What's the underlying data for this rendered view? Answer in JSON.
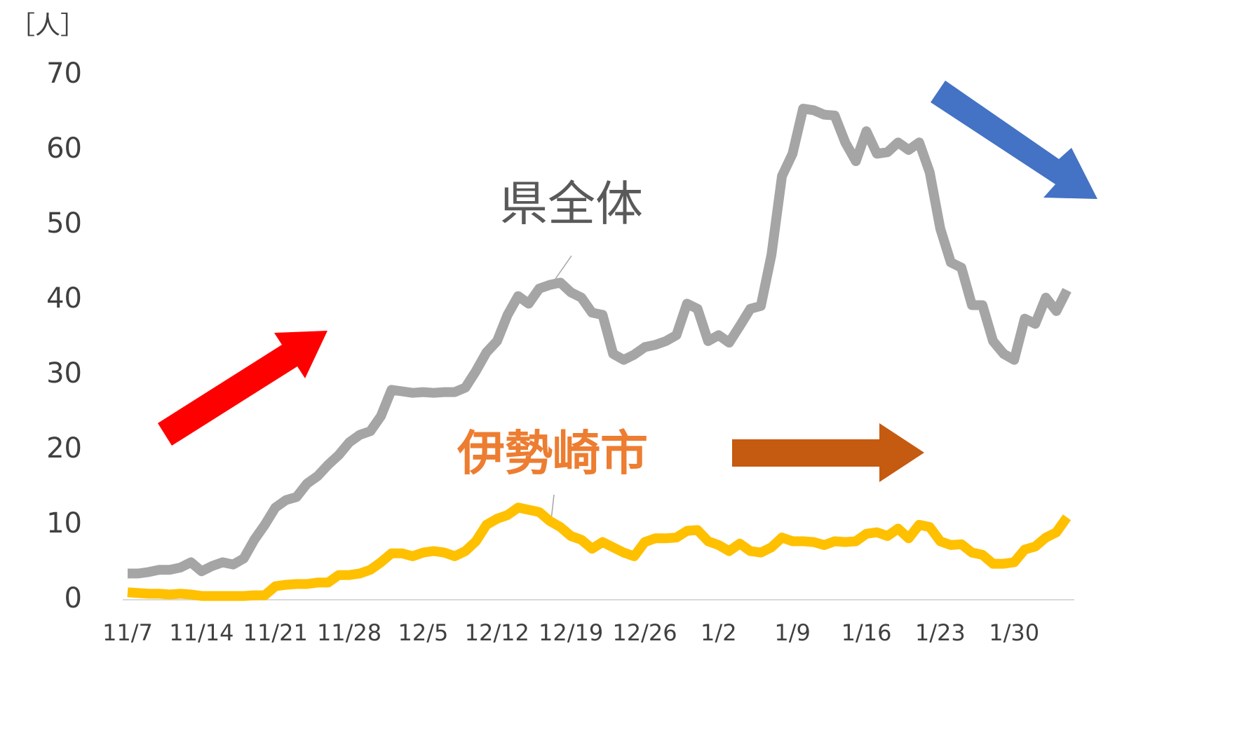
{
  "chart_data": {
    "type": "line",
    "y_axis_label": "［人］",
    "annotations": [
      "県全体",
      "伊勢崎市"
    ],
    "categories": [
      "11/7",
      null,
      null,
      null,
      null,
      null,
      null,
      "11/14",
      null,
      null,
      null,
      null,
      null,
      null,
      "11/21",
      null,
      null,
      null,
      null,
      null,
      null,
      "11/28",
      null,
      null,
      null,
      null,
      null,
      null,
      "12/5",
      null,
      null,
      null,
      null,
      null,
      null,
      "12/12",
      null,
      null,
      null,
      null,
      null,
      null,
      "12/19",
      null,
      null,
      null,
      null,
      null,
      null,
      "12/26",
      null,
      null,
      null,
      null,
      null,
      null,
      "1/2",
      null,
      null,
      null,
      null,
      null,
      null,
      "1/9",
      null,
      null,
      null,
      null,
      null,
      null,
      "1/16",
      null,
      null,
      null,
      null,
      null,
      null,
      "1/23",
      null,
      null,
      null,
      null,
      null,
      null,
      "1/30",
      null,
      null,
      null,
      null,
      null
    ],
    "series": [
      {
        "name": "県全体",
        "color": "#a5a5a5",
        "values": [
          3.5,
          3.5,
          3.7,
          4,
          4,
          4.3,
          5,
          3.8,
          4.5,
          5,
          4.7,
          5.5,
          8,
          10,
          12.3,
          13.3,
          13.7,
          15.5,
          16.5,
          18,
          19.3,
          21,
          22,
          22.5,
          24.5,
          28,
          27.8,
          27.6,
          27.7,
          27.6,
          27.7,
          27.7,
          28.3,
          30.5,
          33,
          34.5,
          38,
          40.5,
          39.5,
          41.5,
          42,
          42.3,
          41,
          40.3,
          38.3,
          38,
          32.8,
          32,
          32.7,
          33.7,
          34,
          34.5,
          35.3,
          39.5,
          38.8,
          34.5,
          35.3,
          34.3,
          36.5,
          38.8,
          39.2,
          46,
          56.5,
          59.5,
          65.5,
          65.3,
          64.7,
          64.6,
          61,
          58.5,
          62.5,
          59.5,
          59.7,
          61,
          60,
          61,
          57,
          49.5,
          45,
          44.3,
          39.3,
          39.3,
          34.5,
          32.8,
          32,
          37.5,
          36.8,
          40.3,
          38.5,
          41.3
        ]
      },
      {
        "name": "伊勢崎市",
        "color": "#ffc000",
        "values": [
          1,
          0.9,
          0.8,
          0.8,
          0.7,
          0.8,
          0.7,
          0.5,
          0.5,
          0.5,
          0.5,
          0.5,
          0.6,
          0.6,
          1.8,
          2,
          2.1,
          2.1,
          2.3,
          2.3,
          3.3,
          3.3,
          3.5,
          4,
          5,
          6.2,
          6.2,
          5.8,
          6.3,
          6.5,
          6.3,
          5.8,
          6.5,
          7.8,
          10,
          10.8,
          11.3,
          12.3,
          12,
          11.7,
          10.5,
          9.7,
          8.5,
          8,
          6.8,
          7.7,
          7,
          6.3,
          5.8,
          7.7,
          8.2,
          8.2,
          8.3,
          9.2,
          9.3,
          7.8,
          7.3,
          6.5,
          7.5,
          6.5,
          6.3,
          7,
          8.3,
          7.8,
          7.8,
          7.7,
          7.3,
          7.8,
          7.7,
          7.8,
          8.8,
          9,
          8.5,
          9.5,
          8.2,
          10,
          9.7,
          7.8,
          7.3,
          7.4,
          6.3,
          6,
          4.8,
          4.8,
          5,
          6.7,
          7.1,
          8.3,
          9,
          11
        ]
      }
    ],
    "ylim": [
      0,
      70
    ],
    "yticks": [
      0,
      10,
      20,
      30,
      40,
      50,
      60,
      70
    ]
  }
}
